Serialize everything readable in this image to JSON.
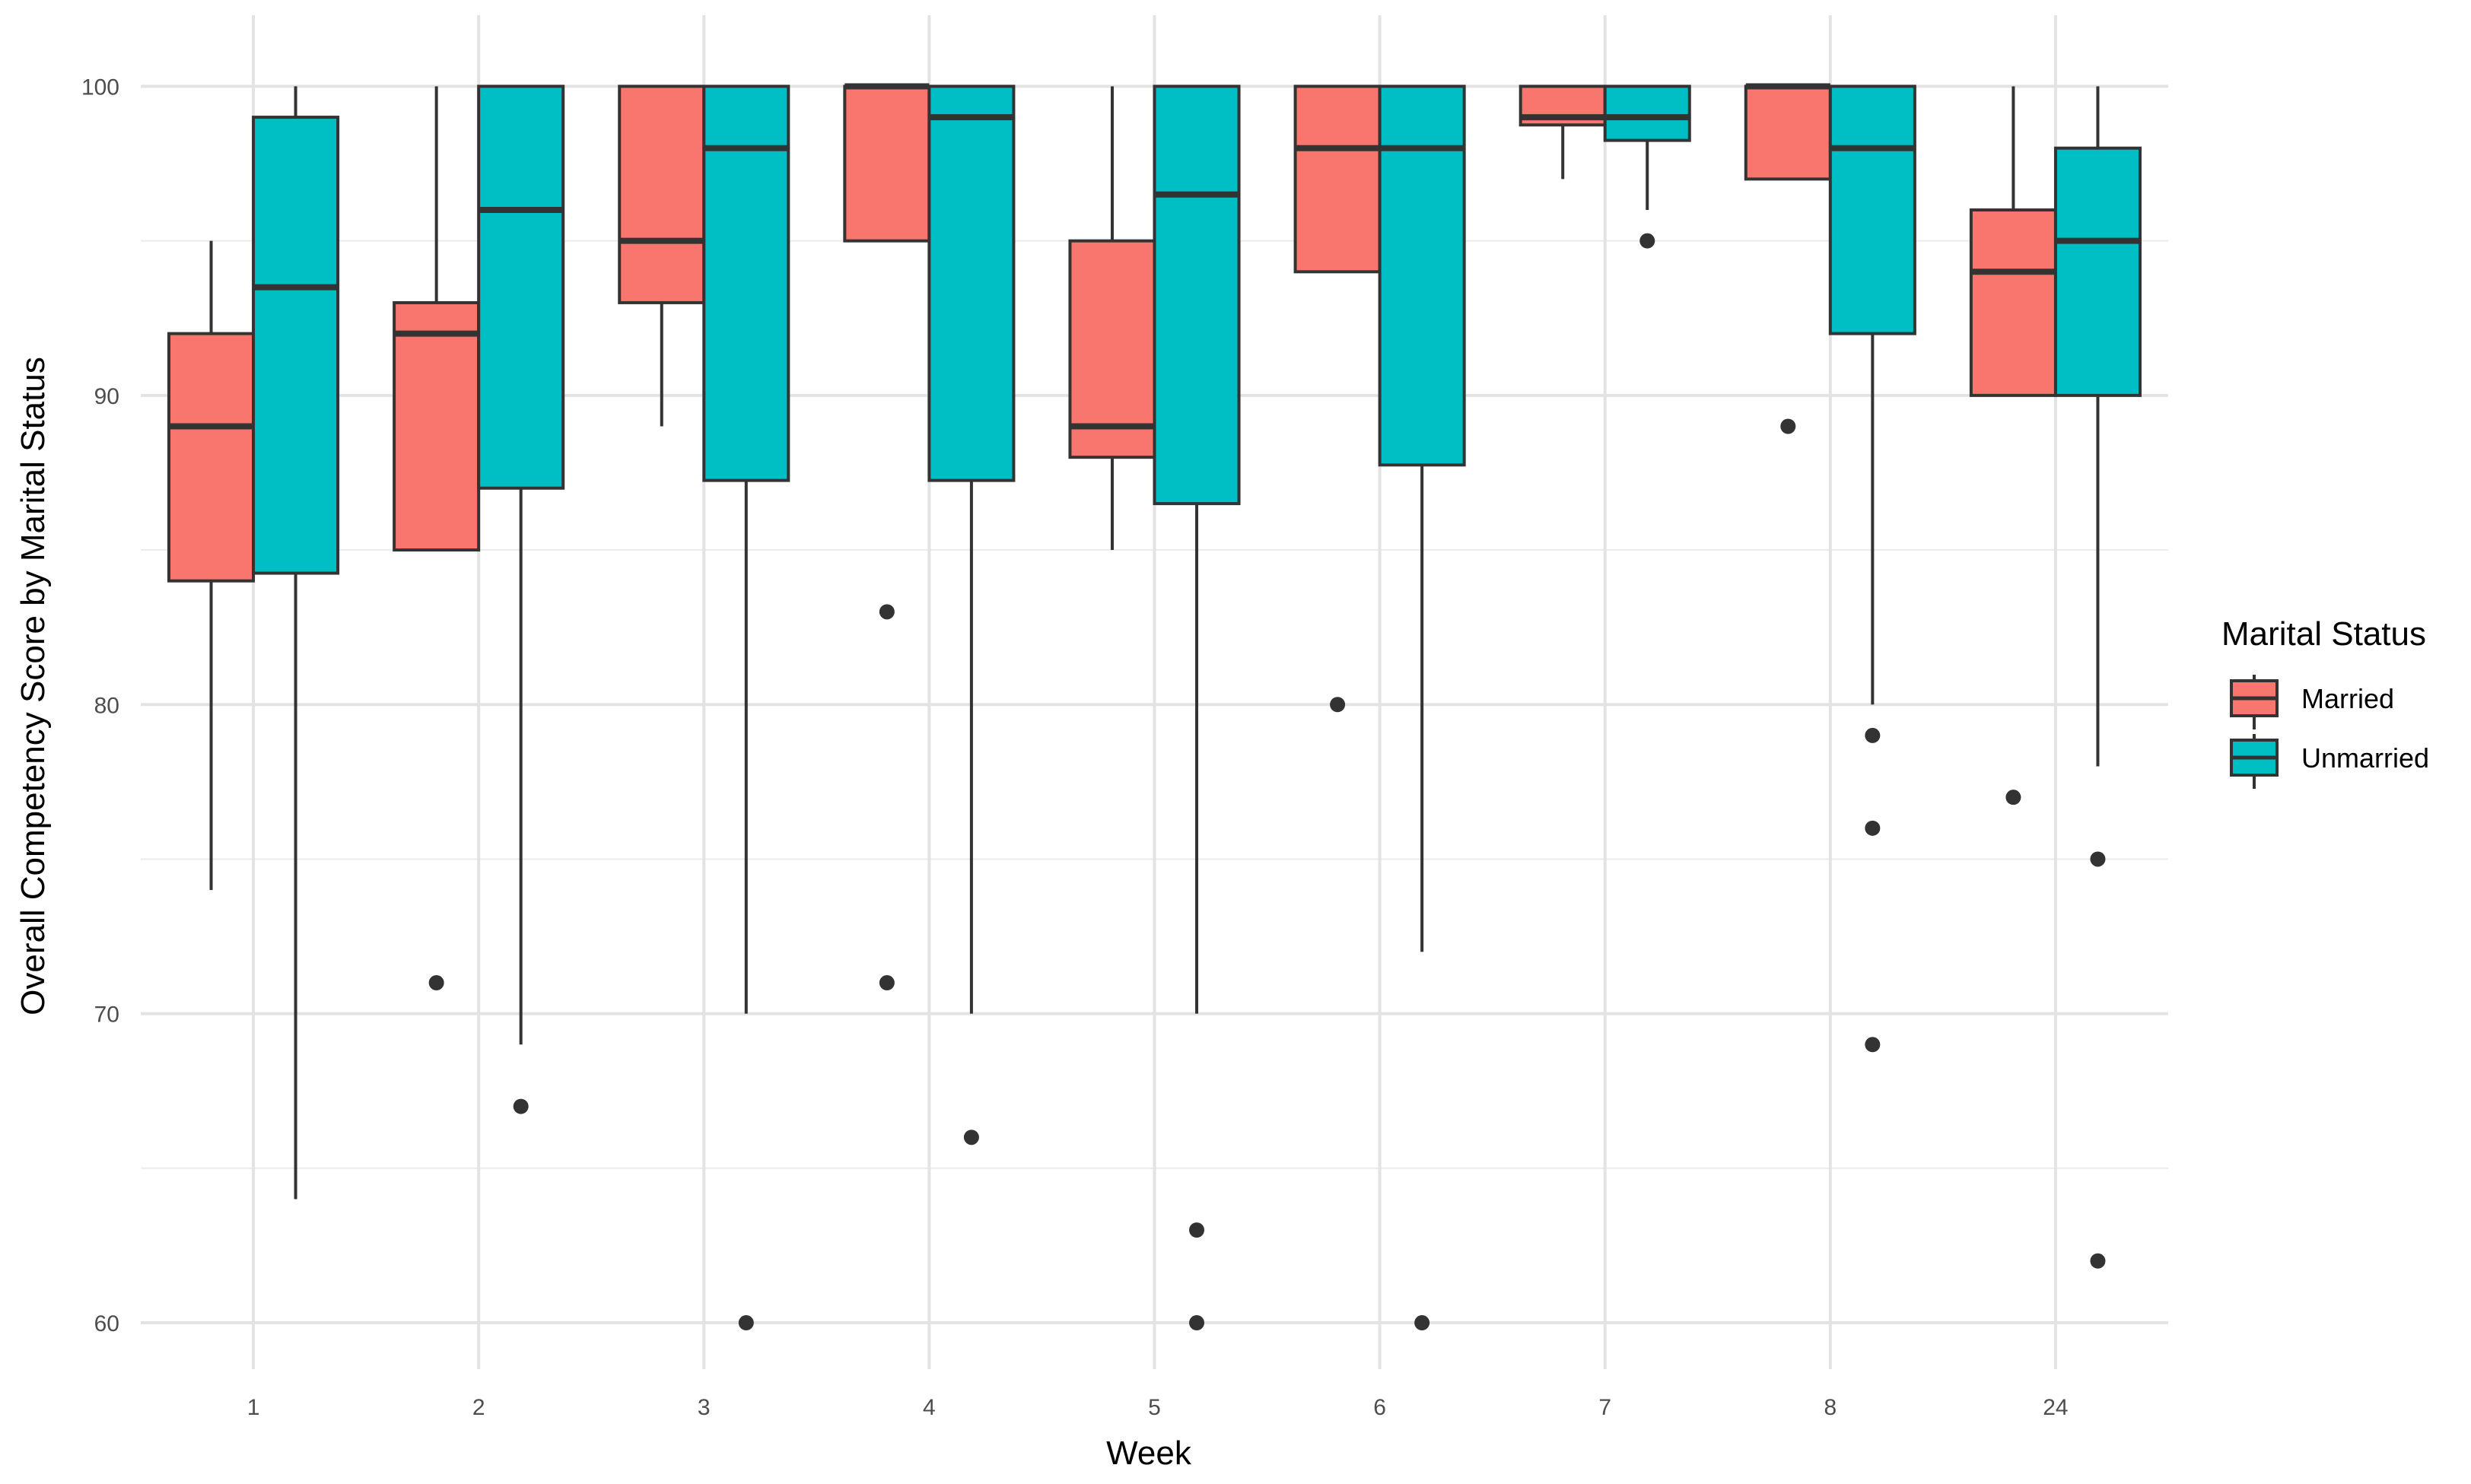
{
  "chart_data": {
    "type": "box",
    "title": "",
    "xlabel": "Week",
    "ylabel": "Overall Competency Score by Marital Status",
    "categories": [
      "1",
      "2",
      "3",
      "4",
      "5",
      "6",
      "7",
      "8",
      "24"
    ],
    "yticks": [
      60,
      70,
      80,
      90,
      100
    ],
    "ylim": [
      58.5,
      102.3
    ],
    "grid": true,
    "legend": {
      "title": "Marital Status",
      "position": "right"
    },
    "series": [
      {
        "name": "Married",
        "color": "#F8766D",
        "boxes": [
          {
            "category": "1",
            "min": 74,
            "q1": 84,
            "median": 89,
            "q3": 92,
            "max": 95,
            "outliers": []
          },
          {
            "category": "2",
            "min": 85,
            "q1": 85,
            "median": 92,
            "q3": 93,
            "max": 100,
            "outliers": [
              71
            ]
          },
          {
            "category": "3",
            "min": 89,
            "q1": 93,
            "median": 95,
            "q3": 100,
            "max": 100,
            "outliers": []
          },
          {
            "category": "4",
            "min": 95,
            "q1": 95,
            "median": 100,
            "q3": 100,
            "max": 100,
            "outliers": [
              83,
              71
            ]
          },
          {
            "category": "5",
            "min": 85,
            "q1": 88,
            "median": 89,
            "q3": 95,
            "max": 100,
            "outliers": []
          },
          {
            "category": "6",
            "min": 94,
            "q1": 94,
            "median": 98,
            "q3": 100,
            "max": 100,
            "outliers": [
              80
            ]
          },
          {
            "category": "7",
            "min": 97,
            "q1": 98.75,
            "median": 99,
            "q3": 100,
            "max": 100,
            "outliers": []
          },
          {
            "category": "8",
            "min": 97,
            "q1": 97,
            "median": 100,
            "q3": 100,
            "max": 100,
            "outliers": [
              89
            ]
          },
          {
            "category": "24",
            "min": 90,
            "q1": 90,
            "median": 94,
            "q3": 96,
            "max": 100,
            "outliers": [
              77
            ]
          }
        ]
      },
      {
        "name": "Unmarried",
        "color": "#00BFC4",
        "boxes": [
          {
            "category": "1",
            "min": 64,
            "q1": 84.25,
            "median": 93.5,
            "q3": 99,
            "max": 100,
            "outliers": []
          },
          {
            "category": "2",
            "min": 69,
            "q1": 87,
            "median": 96,
            "q3": 100,
            "max": 100,
            "outliers": [
              67
            ]
          },
          {
            "category": "3",
            "min": 70,
            "q1": 87.25,
            "median": 98,
            "q3": 100,
            "max": 100,
            "outliers": [
              60
            ]
          },
          {
            "category": "4",
            "min": 70,
            "q1": 87.25,
            "median": 99,
            "q3": 100,
            "max": 100,
            "outliers": [
              66
            ]
          },
          {
            "category": "5",
            "min": 70,
            "q1": 86.5,
            "median": 96.5,
            "q3": 100,
            "max": 100,
            "outliers": [
              63,
              60
            ]
          },
          {
            "category": "6",
            "min": 72,
            "q1": 87.75,
            "median": 98,
            "q3": 100,
            "max": 100,
            "outliers": [
              60
            ]
          },
          {
            "category": "7",
            "min": 96,
            "q1": 98.25,
            "median": 99,
            "q3": 100,
            "max": 100,
            "outliers": [
              95
            ]
          },
          {
            "category": "8",
            "min": 80,
            "q1": 92,
            "median": 98,
            "q3": 100,
            "max": 100,
            "outliers": [
              79,
              76,
              69
            ]
          },
          {
            "category": "24",
            "min": 78,
            "q1": 90,
            "median": 95,
            "q3": 98,
            "max": 100,
            "outliers": [
              75,
              62
            ]
          }
        ]
      }
    ]
  }
}
